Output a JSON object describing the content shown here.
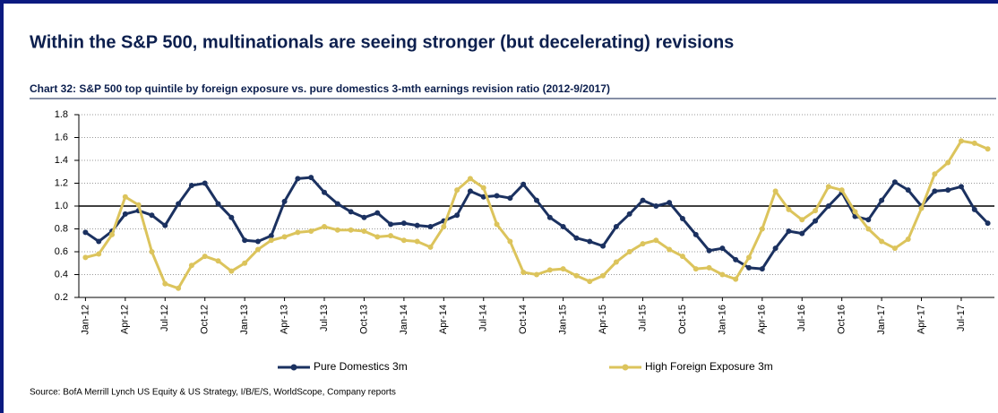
{
  "chart_data": {
    "type": "line",
    "title": "Within the S&P 500, multinationals are seeing stronger (but decelerating) revisions",
    "subtitle": "Chart 32: S&P 500 top quintile by foreign exposure vs. pure domestics 3-mth earnings revision ratio (2012-9/2017)",
    "source": "Source: BofA Merrill Lynch US Equity & US Strategy, I/B/E/S, WorldScope, Company reports",
    "categories": [
      "Jan-12",
      null,
      null,
      "Apr-12",
      null,
      null,
      "Jul-12",
      null,
      null,
      "Oct-12",
      null,
      null,
      "Jan-13",
      null,
      null,
      "Apr-13",
      null,
      null,
      "Jul-13",
      null,
      null,
      "Oct-13",
      null,
      null,
      "Jan-14",
      null,
      null,
      "Apr-14",
      null,
      null,
      "Jul-14",
      null,
      null,
      "Oct-14",
      null,
      null,
      "Jan-15",
      null,
      null,
      "Apr-15",
      null,
      null,
      "Jul-15",
      null,
      null,
      "Oct-15",
      null,
      null,
      "Jan-16",
      null,
      null,
      "Apr-16",
      null,
      null,
      "Jul-16",
      null,
      null,
      "Oct-16",
      null,
      null,
      "Jan-17",
      null,
      null,
      "Apr-17",
      null,
      null,
      "Jul-17",
      null,
      null
    ],
    "series": [
      {
        "name": "Pure Domestics 3m",
        "color": "#1b3160",
        "values": [
          0.77,
          0.69,
          0.78,
          0.93,
          0.96,
          0.92,
          0.83,
          1.02,
          1.18,
          1.2,
          1.02,
          0.9,
          0.7,
          0.69,
          0.74,
          1.04,
          1.24,
          1.25,
          1.12,
          1.02,
          0.95,
          0.9,
          0.94,
          0.84,
          0.85,
          0.83,
          0.82,
          0.87,
          0.92,
          1.13,
          1.08,
          1.09,
          1.07,
          1.19,
          1.05,
          0.9,
          0.82,
          0.72,
          0.69,
          0.65,
          0.82,
          0.93,
          1.05,
          1.0,
          1.03,
          0.89,
          0.75,
          0.61,
          0.63,
          0.53,
          0.46,
          0.45,
          0.63,
          0.78,
          0.76,
          0.87,
          1.0,
          1.12,
          0.91,
          0.88,
          1.05,
          1.21,
          1.14,
          1.0,
          1.13,
          1.14,
          1.17,
          0.97,
          0.85
        ]
      },
      {
        "name": "High Foreign Exposure 3m",
        "color": "#dcc45c",
        "values": [
          0.55,
          0.58,
          0.75,
          1.08,
          1.01,
          0.6,
          0.32,
          0.28,
          0.48,
          0.56,
          0.52,
          0.43,
          0.5,
          0.62,
          0.7,
          0.73,
          0.77,
          0.78,
          0.82,
          0.79,
          0.79,
          0.78,
          0.73,
          0.74,
          0.7,
          0.69,
          0.64,
          0.82,
          1.14,
          1.24,
          1.16,
          0.84,
          0.69,
          0.42,
          0.4,
          0.44,
          0.45,
          0.39,
          0.34,
          0.39,
          0.51,
          0.6,
          0.67,
          0.7,
          0.62,
          0.56,
          0.45,
          0.46,
          0.4,
          0.36,
          0.55,
          0.8,
          1.13,
          0.97,
          0.88,
          0.96,
          1.17,
          1.14,
          0.95,
          0.8,
          0.69,
          0.63,
          0.71,
          0.98,
          1.28,
          1.38,
          1.57,
          1.55,
          1.5
        ]
      }
    ],
    "ylim": [
      0.2,
      1.8
    ],
    "yticks": [
      0.2,
      0.4,
      0.6,
      0.8,
      {
        "value": 1,
        "label": "1.0"
      },
      1.2,
      1.4,
      1.6,
      1.8
    ],
    "reference_line": 1,
    "grid": true
  }
}
